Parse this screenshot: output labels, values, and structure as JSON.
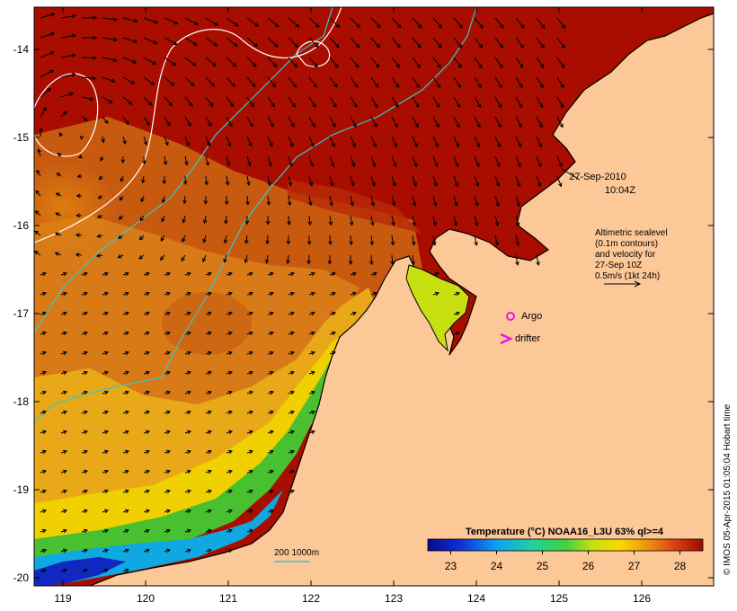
{
  "map": {
    "lon_ticks": [
      "119",
      "120",
      "121",
      "122",
      "123",
      "124",
      "125",
      "126"
    ],
    "lat_ticks": [
      "-14",
      "-15",
      "-16",
      "-17",
      "-18",
      "-19",
      "-20"
    ],
    "timestamp_date": "27-Sep-2010",
    "timestamp_time": "10:04Z",
    "legend_text": [
      "Altimetric sealevel",
      "(0.1m contours)",
      "and velocity for",
      "27-Sep 10Z",
      "0.5m/s (1kt 24h)"
    ],
    "argo_label": "Argo",
    "drifter_label": "drifter",
    "isobath_label": "200  1000m",
    "colorbar_title": "Temperature (°C) NOAA16_L3U 63% ql>=4",
    "colorbar_ticks": [
      "23",
      "24",
      "25",
      "26",
      "27",
      "28"
    ],
    "colorbar_range": [
      22.5,
      28.5
    ],
    "credit": "© IMOS 05-Apr-2015 01:05:04 Hobart time",
    "colors": {
      "land": "#fdc898",
      "hot": "#a80d00",
      "isobath": "#38c8c8",
      "contour": "#ffffff",
      "marker": "#e818e8"
    }
  }
}
